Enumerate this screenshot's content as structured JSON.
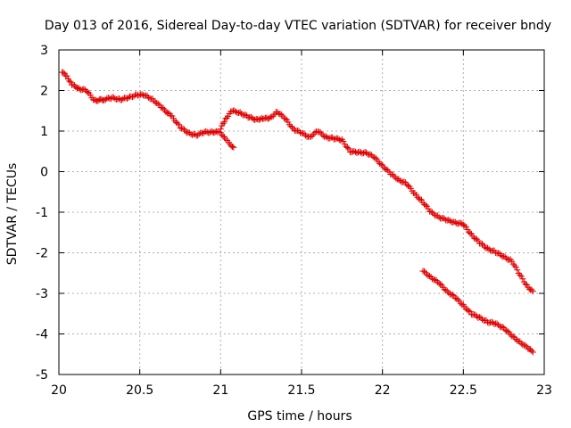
{
  "chart_data": {
    "type": "scatter",
    "title": "Day 013 of 2016, Sidereal Day-to-day VTEC variation (SDTVAR) for receiver bndy",
    "xlabel": "GPS time / hours",
    "ylabel": "SDTVAR / TECUs",
    "xlim": [
      20,
      23
    ],
    "ylim": [
      -5,
      3
    ],
    "x_ticks": [
      20,
      20.5,
      21,
      21.5,
      22,
      22.5,
      23
    ],
    "x_tick_labels": [
      "20",
      "20.5",
      "21",
      "21.5",
      "22",
      "22.5",
      "23"
    ],
    "y_ticks": [
      -5,
      -4,
      -3,
      -2,
      -1,
      0,
      1,
      2,
      3
    ],
    "y_tick_labels": [
      "-5",
      "-4",
      "-3",
      "-2",
      "-1",
      "0",
      "1",
      "2",
      "3"
    ],
    "grid": true,
    "marker": "plus",
    "colors": {
      "series": "#e00000",
      "grid": "#b0b0b0",
      "frame": "#000000"
    },
    "series": [
      {
        "name": "",
        "anchors": [
          [
            20.02,
            2.45
          ],
          [
            20.05,
            2.35
          ],
          [
            20.08,
            2.15
          ],
          [
            20.12,
            2.05
          ],
          [
            20.17,
            2.0
          ],
          [
            20.22,
            1.75
          ],
          [
            20.28,
            1.78
          ],
          [
            20.33,
            1.82
          ],
          [
            20.38,
            1.78
          ],
          [
            20.43,
            1.82
          ],
          [
            20.48,
            1.9
          ],
          [
            20.53,
            1.88
          ],
          [
            20.58,
            1.78
          ],
          [
            20.63,
            1.6
          ],
          [
            20.7,
            1.35
          ],
          [
            20.75,
            1.1
          ],
          [
            20.8,
            0.95
          ],
          [
            20.85,
            0.9
          ],
          [
            20.9,
            0.97
          ],
          [
            20.95,
            0.98
          ],
          [
            20.98,
            0.98
          ],
          [
            21.0,
            0.95
          ],
          [
            21.03,
            0.82
          ],
          [
            21.05,
            0.7
          ],
          [
            21.08,
            0.6
          ]
        ]
      },
      {
        "name": "",
        "anchors": [
          [
            21.0,
            1.05
          ],
          [
            21.03,
            1.3
          ],
          [
            21.07,
            1.5
          ],
          [
            21.12,
            1.45
          ],
          [
            21.17,
            1.35
          ],
          [
            21.22,
            1.28
          ],
          [
            21.26,
            1.32
          ],
          [
            21.3,
            1.3
          ],
          [
            21.35,
            1.48
          ],
          [
            21.4,
            1.3
          ],
          [
            21.45,
            1.05
          ],
          [
            21.5,
            0.95
          ],
          [
            21.55,
            0.85
          ],
          [
            21.6,
            1.0
          ],
          [
            21.65,
            0.85
          ],
          [
            21.7,
            0.82
          ],
          [
            21.75,
            0.78
          ],
          [
            21.8,
            0.5
          ],
          [
            21.85,
            0.47
          ],
          [
            21.9,
            0.47
          ],
          [
            21.95,
            0.35
          ],
          [
            22.0,
            0.15
          ],
          [
            22.05,
            -0.05
          ],
          [
            22.1,
            -0.2
          ],
          [
            22.15,
            -0.3
          ],
          [
            22.2,
            -0.55
          ],
          [
            22.25,
            -0.75
          ],
          [
            22.3,
            -1.0
          ],
          [
            22.35,
            -1.12
          ],
          [
            22.4,
            -1.2
          ],
          [
            22.45,
            -1.25
          ],
          [
            22.5,
            -1.3
          ],
          [
            22.55,
            -1.55
          ],
          [
            22.6,
            -1.75
          ],
          [
            22.65,
            -1.9
          ],
          [
            22.7,
            -1.98
          ],
          [
            22.75,
            -2.1
          ],
          [
            22.8,
            -2.2
          ],
          [
            22.85,
            -2.55
          ],
          [
            22.9,
            -2.85
          ],
          [
            22.93,
            -2.95
          ]
        ]
      },
      {
        "name": "",
        "anchors": [
          [
            22.25,
            -2.45
          ],
          [
            22.3,
            -2.6
          ],
          [
            22.35,
            -2.75
          ],
          [
            22.4,
            -2.95
          ],
          [
            22.45,
            -3.1
          ],
          [
            22.5,
            -3.3
          ],
          [
            22.55,
            -3.5
          ],
          [
            22.6,
            -3.6
          ],
          [
            22.65,
            -3.7
          ],
          [
            22.7,
            -3.75
          ],
          [
            22.75,
            -3.85
          ],
          [
            22.8,
            -4.05
          ],
          [
            22.85,
            -4.2
          ],
          [
            22.9,
            -4.35
          ],
          [
            22.93,
            -4.45
          ]
        ]
      }
    ]
  }
}
